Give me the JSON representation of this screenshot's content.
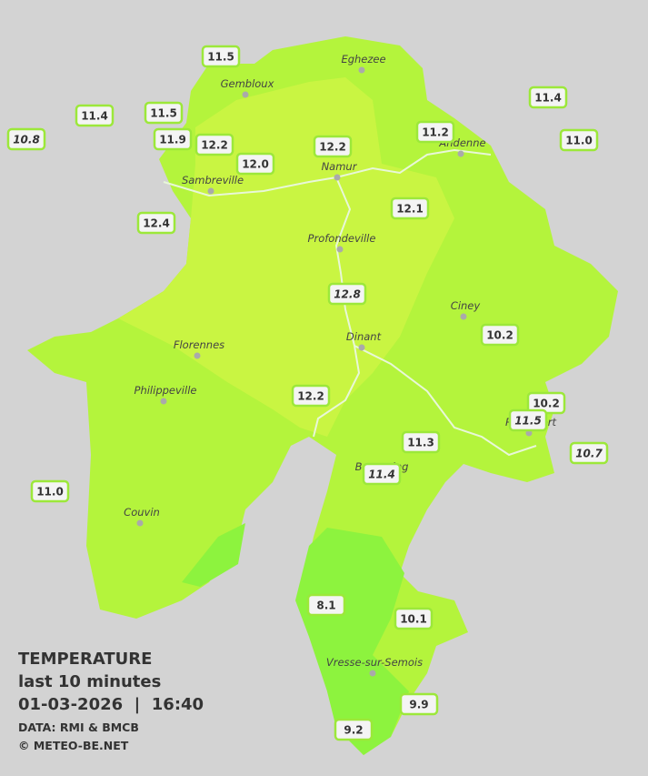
{
  "stations": [
    {
      "value": "11.5"
    },
    {
      "value": "11.4"
    },
    {
      "value": "11.5"
    },
    {
      "value": "10.8",
      "italic": true
    },
    {
      "value": "11.9"
    },
    {
      "value": "12.2"
    },
    {
      "value": "12.0"
    },
    {
      "value": "12.2"
    },
    {
      "value": "11.2"
    },
    {
      "value": "11.4"
    },
    {
      "value": "11.0"
    },
    {
      "value": "12.4"
    },
    {
      "value": "12.1"
    },
    {
      "value": "12.8",
      "italic": true
    },
    {
      "value": "10.2"
    },
    {
      "value": "10.2"
    },
    {
      "value": "11.5",
      "italic": true
    },
    {
      "value": "12.2"
    },
    {
      "value": "11.3"
    },
    {
      "value": "11.4",
      "italic": true
    },
    {
      "value": "10.7",
      "italic": true
    },
    {
      "value": "11.0"
    },
    {
      "value": "8.1"
    },
    {
      "value": "10.1"
    },
    {
      "value": "9.9"
    },
    {
      "value": "9.2"
    }
  ],
  "cities": [
    "Eghezee",
    "Gembloux",
    "Andenne",
    "Namur",
    "Sambreville",
    "Profondeville",
    "Ciney",
    "Dinant",
    "Florennes",
    "Philippeville",
    "Rochefort",
    "Beauraing",
    "Couvin",
    "Vresse-sur-Semois"
  ],
  "legend": {
    "title": "TEMPERATURE",
    "subtitle": "last 10 minutes",
    "datetime": "01-03-2026  |  16:40",
    "source": "DATA: RMI & BMCB",
    "copyright": "© METEO-BE.NET"
  }
}
